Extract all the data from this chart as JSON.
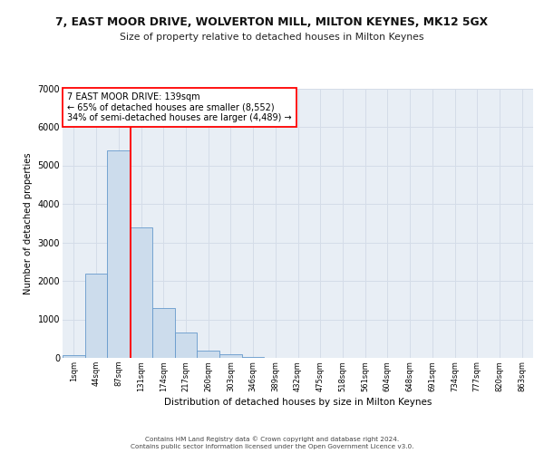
{
  "title": "7, EAST MOOR DRIVE, WOLVERTON MILL, MILTON KEYNES, MK12 5GX",
  "subtitle": "Size of property relative to detached houses in Milton Keynes",
  "xlabel": "Distribution of detached houses by size in Milton Keynes",
  "ylabel": "Number of detached properties",
  "bin_labels": [
    "1sqm",
    "44sqm",
    "87sqm",
    "131sqm",
    "174sqm",
    "217sqm",
    "260sqm",
    "303sqm",
    "346sqm",
    "389sqm",
    "432sqm",
    "475sqm",
    "518sqm",
    "561sqm",
    "604sqm",
    "648sqm",
    "691sqm",
    "734sqm",
    "777sqm",
    "820sqm",
    "863sqm"
  ],
  "bar_heights": [
    80,
    2200,
    5400,
    3400,
    1300,
    650,
    200,
    90,
    30,
    0,
    0,
    0,
    0,
    0,
    0,
    0,
    0,
    0,
    0,
    0,
    0
  ],
  "bar_color": "#ccdcec",
  "bar_edge_color": "#6699cc",
  "grid_color": "#d4dce8",
  "background_color": "#e8eef5",
  "annotation_line1": "7 EAST MOOR DRIVE: 139sqm",
  "annotation_line2": "← 65% of detached houses are smaller (8,552)",
  "annotation_line3": "34% of semi-detached houses are larger (4,489) →",
  "footer_line1": "Contains HM Land Registry data © Crown copyright and database right 2024.",
  "footer_line2": "Contains public sector information licensed under the Open Government Licence v3.0.",
  "ylim": [
    0,
    7000
  ],
  "yticks": [
    0,
    1000,
    2000,
    3000,
    4000,
    5000,
    6000,
    7000
  ],
  "red_line_x": 2.53
}
